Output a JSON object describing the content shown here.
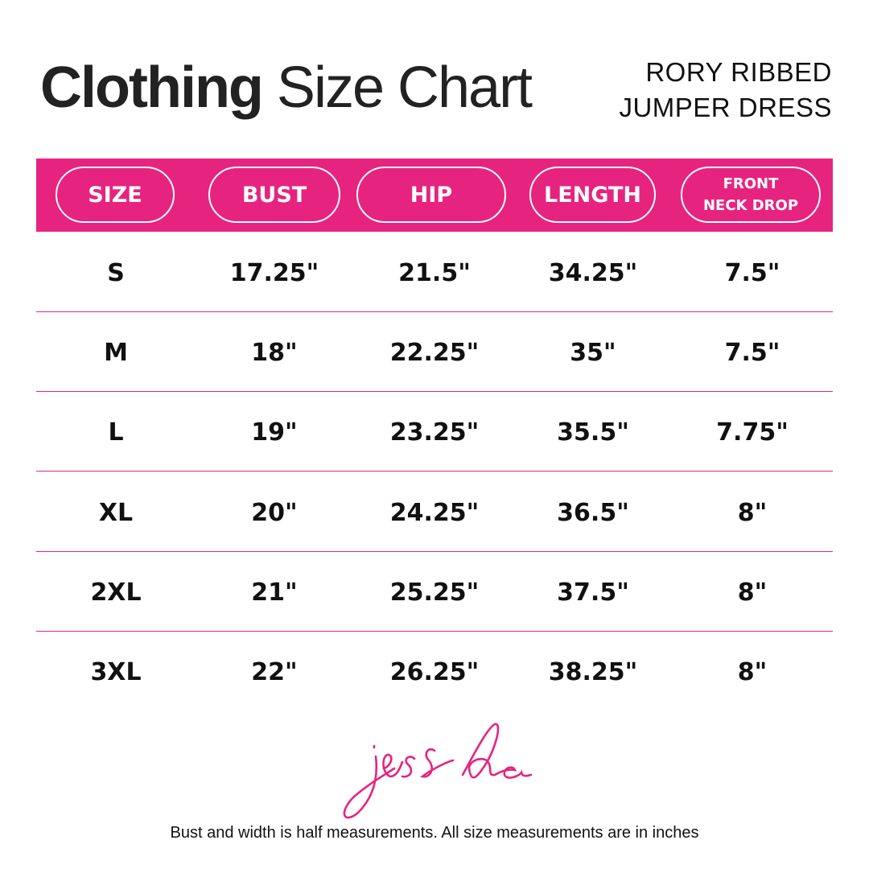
{
  "title": {
    "bold": "Clothing",
    "light": "Size Chart"
  },
  "product": {
    "line1": "RORY RIBBED",
    "line2": "JUMPER DRESS"
  },
  "colors": {
    "accent": "#E6247F",
    "text": "#111111"
  },
  "table": {
    "headers": [
      "SIZE",
      "BUST",
      "HIP",
      "LENGTH",
      "FRONT NECK DROP"
    ],
    "header_front_line1": "FRONT",
    "header_front_line2": "NECK DROP",
    "rows": [
      [
        "S",
        "17.25\"",
        "21.5\"",
        "34.25\"",
        "7.5\""
      ],
      [
        "M",
        "18\"",
        "22.25\"",
        "35\"",
        "7.5\""
      ],
      [
        "L",
        "19\"",
        "23.25\"",
        "35.5\"",
        "7.75\""
      ],
      [
        "XL",
        "20\"",
        "24.25\"",
        "36.5\"",
        "8\""
      ],
      [
        "2XL",
        "21\"",
        "25.25\"",
        "37.5\"",
        "8\""
      ],
      [
        "3XL",
        "22\"",
        "26.25\"",
        "38.25\"",
        "8\""
      ]
    ]
  },
  "logo": {
    "text": "jess lea"
  },
  "footer": "Bust and width is half measurements. All size measurements are in inches"
}
